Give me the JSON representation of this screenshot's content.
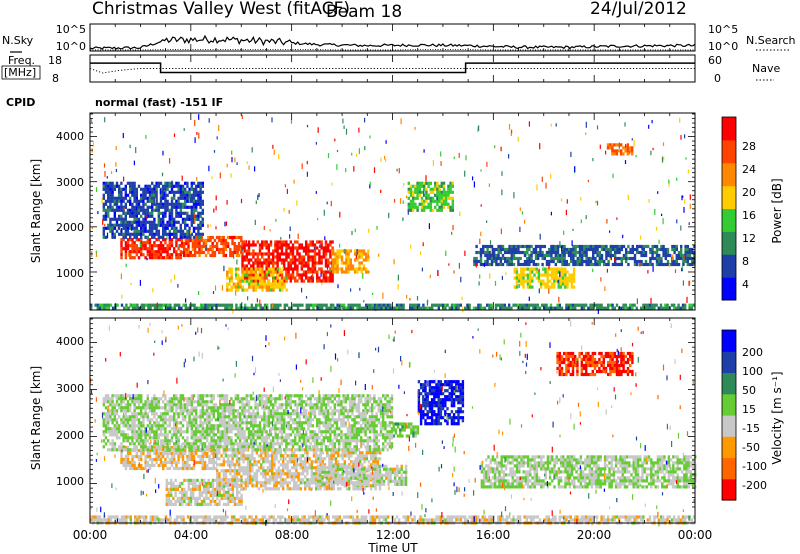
{
  "header": {
    "station": "Christmas Valley West (fitACF)",
    "beam": "Beam 18",
    "date": "24/Jul/2012"
  },
  "noise_panel": {
    "left_label": "N.Sky",
    "left_ticks": [
      "10^5",
      "10^0"
    ],
    "right_ticks": [
      "10^5",
      "10^0"
    ],
    "right_label": "N.Search"
  },
  "freq_panel": {
    "label_1": "Freq.",
    "label_2": "[MHz]",
    "left_ticks": [
      "18",
      "8"
    ],
    "right_ticks": [
      "60",
      "0"
    ],
    "right_label": "Nave"
  },
  "cpid": {
    "label": "CPID",
    "text": "normal (fast) -151 IF"
  },
  "power_panel": {
    "ylabel": "Slant Range [km]",
    "yticks": [
      "4000",
      "3000",
      "2000",
      "1000"
    ],
    "colorbar_label": "Power [dB]",
    "colorbar_ticks": [
      "28",
      "24",
      "20",
      "16",
      "12",
      "8",
      "4"
    ],
    "colors": [
      "#0000ff",
      "#1f3fa8",
      "#2e8b57",
      "#33cc33",
      "#ffcc00",
      "#ff8800",
      "#ff4400",
      "#ff0000"
    ]
  },
  "velocity_panel": {
    "ylabel": "Slant Range [km]",
    "yticks": [
      "4000",
      "3000",
      "2000",
      "1000"
    ],
    "colorbar_label": "Velocity [m s⁻¹]",
    "colorbar_ticks": [
      "200",
      "100",
      "50",
      "15",
      "-15",
      "-50",
      "-100",
      "-200"
    ],
    "colors": [
      "#0000ff",
      "#1f3fa8",
      "#2e8b57",
      "#66cc33",
      "#c8c8c8",
      "#ff9900",
      "#ff6600",
      "#ff0000"
    ]
  },
  "xaxis": {
    "ticks": [
      "00:00",
      "04:00",
      "08:00",
      "12:00",
      "16:00",
      "20:00",
      "00:00"
    ],
    "label": "Time UT"
  },
  "chart_data": [
    {
      "type": "line",
      "title": "Christmas Valley West (fitACF) Beam 18 24/Jul/2012",
      "panel": "noise",
      "ylabel": "N.Sky",
      "x_range_hours": [
        0,
        24
      ],
      "ylim_log10": [
        0,
        5
      ],
      "series": [
        {
          "name": "N.Sky",
          "x": [
            0,
            2,
            3,
            5,
            7,
            9,
            11,
            13,
            15,
            17,
            19,
            21,
            23,
            24
          ],
          "values": [
            0.5,
            0.6,
            2.0,
            2.2,
            1.8,
            1.2,
            1.0,
            1.1,
            1.0,
            0.7,
            0.7,
            0.9,
            1.0,
            1.0
          ]
        },
        {
          "name": "N.Search",
          "x": [
            0,
            2,
            4,
            6,
            8,
            10,
            12,
            14,
            16,
            18,
            20,
            22,
            24
          ],
          "values": [
            0.2,
            0.2,
            0.3,
            0.3,
            0.3,
            0.2,
            0.2,
            0.3,
            0.2,
            0.2,
            0.2,
            0.2,
            0.2
          ]
        }
      ]
    },
    {
      "type": "line",
      "panel": "frequency",
      "ylabel": "Freq. [MHz]",
      "x_range_hours": [
        0,
        24
      ],
      "ylim": [
        8,
        18
      ],
      "series": [
        {
          "name": "Freq.",
          "x": [
            0,
            2.8,
            2.8,
            14.9,
            14.9,
            24
          ],
          "values": [
            15,
            15,
            11.5,
            11.5,
            15,
            15
          ]
        },
        {
          "name": "Nave",
          "x": [
            0,
            0.5,
            1.2,
            2,
            24
          ],
          "values": [
            30,
            20,
            26,
            30,
            30
          ]
        }
      ]
    },
    {
      "type": "heatmap",
      "panel": "power",
      "ylabel": "Slant Range [km]",
      "colorbar": "Power [dB]",
      "x_range_hours": [
        0,
        24
      ],
      "ylim": [
        180,
        4500
      ],
      "clim": [
        0,
        32
      ],
      "regions": [
        {
          "t0": 1.2,
          "t1": 3.6,
          "r0": 1300,
          "r1": 1750,
          "value": 28
        },
        {
          "t0": 3.6,
          "t1": 6.0,
          "r0": 1350,
          "r1": 1800,
          "value": 26
        },
        {
          "t0": 6.0,
          "t1": 9.6,
          "r0": 800,
          "r1": 1700,
          "value": 29
        },
        {
          "t0": 9.6,
          "t1": 11.0,
          "r0": 1000,
          "r1": 1500,
          "value": 20
        },
        {
          "t0": 5.4,
          "t1": 7.8,
          "r0": 600,
          "r1": 1100,
          "value": 18
        },
        {
          "t0": 16.8,
          "t1": 19.2,
          "r0": 700,
          "r1": 1100,
          "value": 17
        },
        {
          "t0": 12.6,
          "t1": 14.4,
          "r0": 2400,
          "r1": 3000,
          "value": 14
        },
        {
          "t0": 20.5,
          "t1": 21.5,
          "r0": 3650,
          "r1": 3850,
          "value": 24
        },
        {
          "t0": 0.5,
          "t1": 4.5,
          "r0": 1800,
          "r1": 3000,
          "value": 6
        },
        {
          "t0": 15.2,
          "t1": 24.0,
          "r0": 1200,
          "r1": 1600,
          "value": 7
        },
        {
          "t0": 0.0,
          "t1": 24.0,
          "r0": 180,
          "r1": 300,
          "value": 10
        }
      ]
    },
    {
      "type": "heatmap",
      "panel": "velocity",
      "ylabel": "Slant Range [km]",
      "colorbar": "Velocity [m s⁻¹]",
      "x_range_hours": [
        0,
        24
      ],
      "ylim": [
        180,
        4500
      ],
      "clim": [
        -250,
        250
      ],
      "regions": [
        {
          "t0": 1.2,
          "t1": 5.0,
          "r0": 1350,
          "r1": 1800,
          "value": -60
        },
        {
          "t0": 5.0,
          "t1": 11.5,
          "r0": 900,
          "r1": 1750,
          "value": -40
        },
        {
          "t0": 3.0,
          "t1": 6.0,
          "r0": 550,
          "r1": 1100,
          "value": -30
        },
        {
          "t0": 9.0,
          "t1": 12.5,
          "r0": 1000,
          "r1": 1400,
          "value": -20
        },
        {
          "t0": 13.0,
          "t1": 14.8,
          "r0": 2300,
          "r1": 3200,
          "value": 200
        },
        {
          "t0": 12.0,
          "t1": 13.0,
          "r0": 2000,
          "r1": 2300,
          "value": 40
        },
        {
          "t0": 18.5,
          "t1": 21.5,
          "r0": 3300,
          "r1": 3800,
          "value": -200
        },
        {
          "t0": 15.5,
          "t1": 24.0,
          "r0": 900,
          "r1": 1600,
          "value": 0
        },
        {
          "t0": 0.5,
          "t1": 12.0,
          "r0": 1700,
          "r1": 2900,
          "value": 0
        },
        {
          "t0": 0.0,
          "t1": 24.0,
          "r0": 180,
          "r1": 320,
          "value": -40
        }
      ]
    }
  ]
}
